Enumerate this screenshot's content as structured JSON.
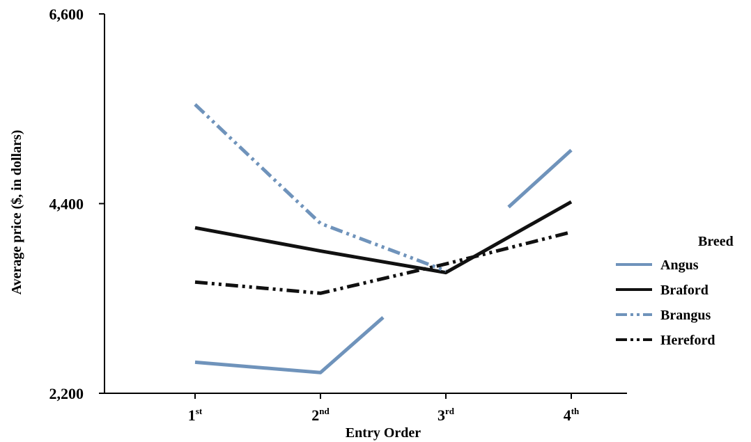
{
  "chart_data": {
    "type": "line",
    "title": "",
    "xlabel": "Entry Order",
    "ylabel": "Average price ($, in dollars)",
    "ylim": [
      2200,
      6600
    ],
    "yticks": [
      "6,600",
      "4,400",
      "2,200"
    ],
    "ytick_values": [
      6600,
      4400,
      2200
    ],
    "categories": [
      {
        "base": "1",
        "sup": "st"
      },
      {
        "base": "2",
        "sup": "nd"
      },
      {
        "base": "3",
        "sup": "rd"
      },
      {
        "base": "4",
        "sup": "th"
      }
    ],
    "legend": {
      "title": "Breed",
      "position": "right"
    },
    "series": [
      {
        "name": "Angus",
        "color": "#6f93bb",
        "style": "solid",
        "segments": [
          [
            [
              1,
              2560
            ],
            [
              2,
              2440
            ],
            [
              2.5,
              3080
            ]
          ],
          [
            [
              3.5,
              4360
            ],
            [
              4,
              5020
            ]
          ]
        ]
      },
      {
        "name": "Braford",
        "color": "#111111",
        "style": "solid",
        "segments": [
          [
            [
              1,
              4120
            ],
            [
              2,
              3850
            ],
            [
              3,
              3600
            ],
            [
              4,
              4420
            ]
          ]
        ]
      },
      {
        "name": "Brangus",
        "color": "#6f93bb",
        "style": "dashdotdot",
        "segments": [
          [
            [
              1,
              5550
            ],
            [
              2,
              4170
            ],
            [
              3,
              3620
            ]
          ]
        ]
      },
      {
        "name": "Hereford",
        "color": "#111111",
        "style": "dashdotdot",
        "segments": [
          [
            [
              1,
              3490
            ],
            [
              2,
              3360
            ],
            [
              3,
              3700
            ],
            [
              4,
              4070
            ]
          ]
        ]
      }
    ]
  }
}
